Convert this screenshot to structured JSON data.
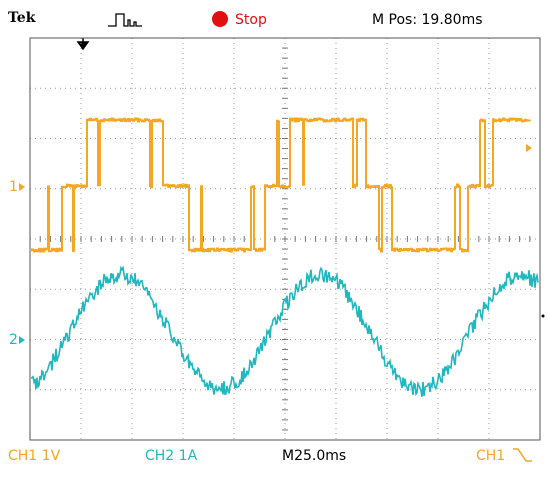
{
  "header": {
    "brand": "Tek",
    "status": "Stop",
    "position": "M Pos: 19.80ms"
  },
  "markers": {
    "ch1": "1",
    "ch2": "2"
  },
  "footer": {
    "ch1_scale": "CH1 1V",
    "ch2_scale": "CH2 1A",
    "timebase": "M25.0ms",
    "trigger_source": "CH1"
  }
}
